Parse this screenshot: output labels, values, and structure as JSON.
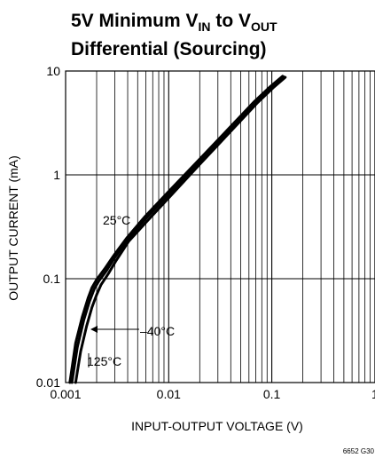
{
  "chart_data": {
    "type": "line",
    "title_parts": {
      "line1_prefix": "5V Minimum V",
      "line1_sub1": "IN",
      "line1_mid": " to V",
      "line1_sub2": "OUT",
      "line2": "Differential (Sourcing)"
    },
    "xlabel": "INPUT-OUTPUT VOLTAGE (V)",
    "ylabel": "OUTPUT CURRENT (mA)",
    "x_scale": "log",
    "y_scale": "log",
    "xlim": [
      0.001,
      1
    ],
    "ylim": [
      0.01,
      10
    ],
    "x_ticks": [
      {
        "value": 0.001,
        "label": "0.001"
      },
      {
        "value": 0.01,
        "label": "0.01"
      },
      {
        "value": 0.1,
        "label": "0.1"
      },
      {
        "value": 1,
        "label": "1"
      }
    ],
    "y_ticks": [
      {
        "value": 0.01,
        "label": "0.01"
      },
      {
        "value": 0.1,
        "label": "0.1"
      },
      {
        "value": 1,
        "label": "1"
      },
      {
        "value": 10,
        "label": "10"
      }
    ],
    "grid": true,
    "series": [
      {
        "name": "25°C",
        "x": [
          0.00115,
          0.0013,
          0.0015,
          0.0017,
          0.0019,
          0.0021,
          0.0025,
          0.003,
          0.004,
          0.006,
          0.01,
          0.02,
          0.04,
          0.07,
          0.1,
          0.13
        ],
        "y": [
          0.01,
          0.022,
          0.04,
          0.06,
          0.08,
          0.095,
          0.12,
          0.16,
          0.24,
          0.38,
          0.65,
          1.35,
          2.8,
          5.0,
          7.0,
          8.8
        ]
      },
      {
        "name": "-40°C",
        "x": [
          0.00125,
          0.0014,
          0.0016,
          0.0018,
          0.002,
          0.0022,
          0.0026,
          0.0031,
          0.0041,
          0.0062,
          0.0103,
          0.0205,
          0.041,
          0.072,
          0.103,
          0.135
        ],
        "y": [
          0.01,
          0.02,
          0.035,
          0.053,
          0.07,
          0.087,
          0.112,
          0.15,
          0.23,
          0.36,
          0.62,
          1.3,
          2.7,
          4.9,
          6.9,
          8.7
        ]
      },
      {
        "name": "125°C",
        "x": [
          0.0011,
          0.00125,
          0.00145,
          0.00165,
          0.0018,
          0.002,
          0.0024,
          0.0029,
          0.0039,
          0.0058,
          0.0097,
          0.0195,
          0.039,
          0.068,
          0.097,
          0.127
        ],
        "y": [
          0.01,
          0.024,
          0.043,
          0.065,
          0.082,
          0.098,
          0.125,
          0.165,
          0.245,
          0.39,
          0.67,
          1.38,
          2.85,
          5.1,
          7.1,
          8.9
        ]
      }
    ],
    "annotations": [
      {
        "text": "25°C"
      },
      {
        "text": "–40°C"
      },
      {
        "text": "125°C"
      }
    ],
    "figure_id": "6652 G30"
  }
}
